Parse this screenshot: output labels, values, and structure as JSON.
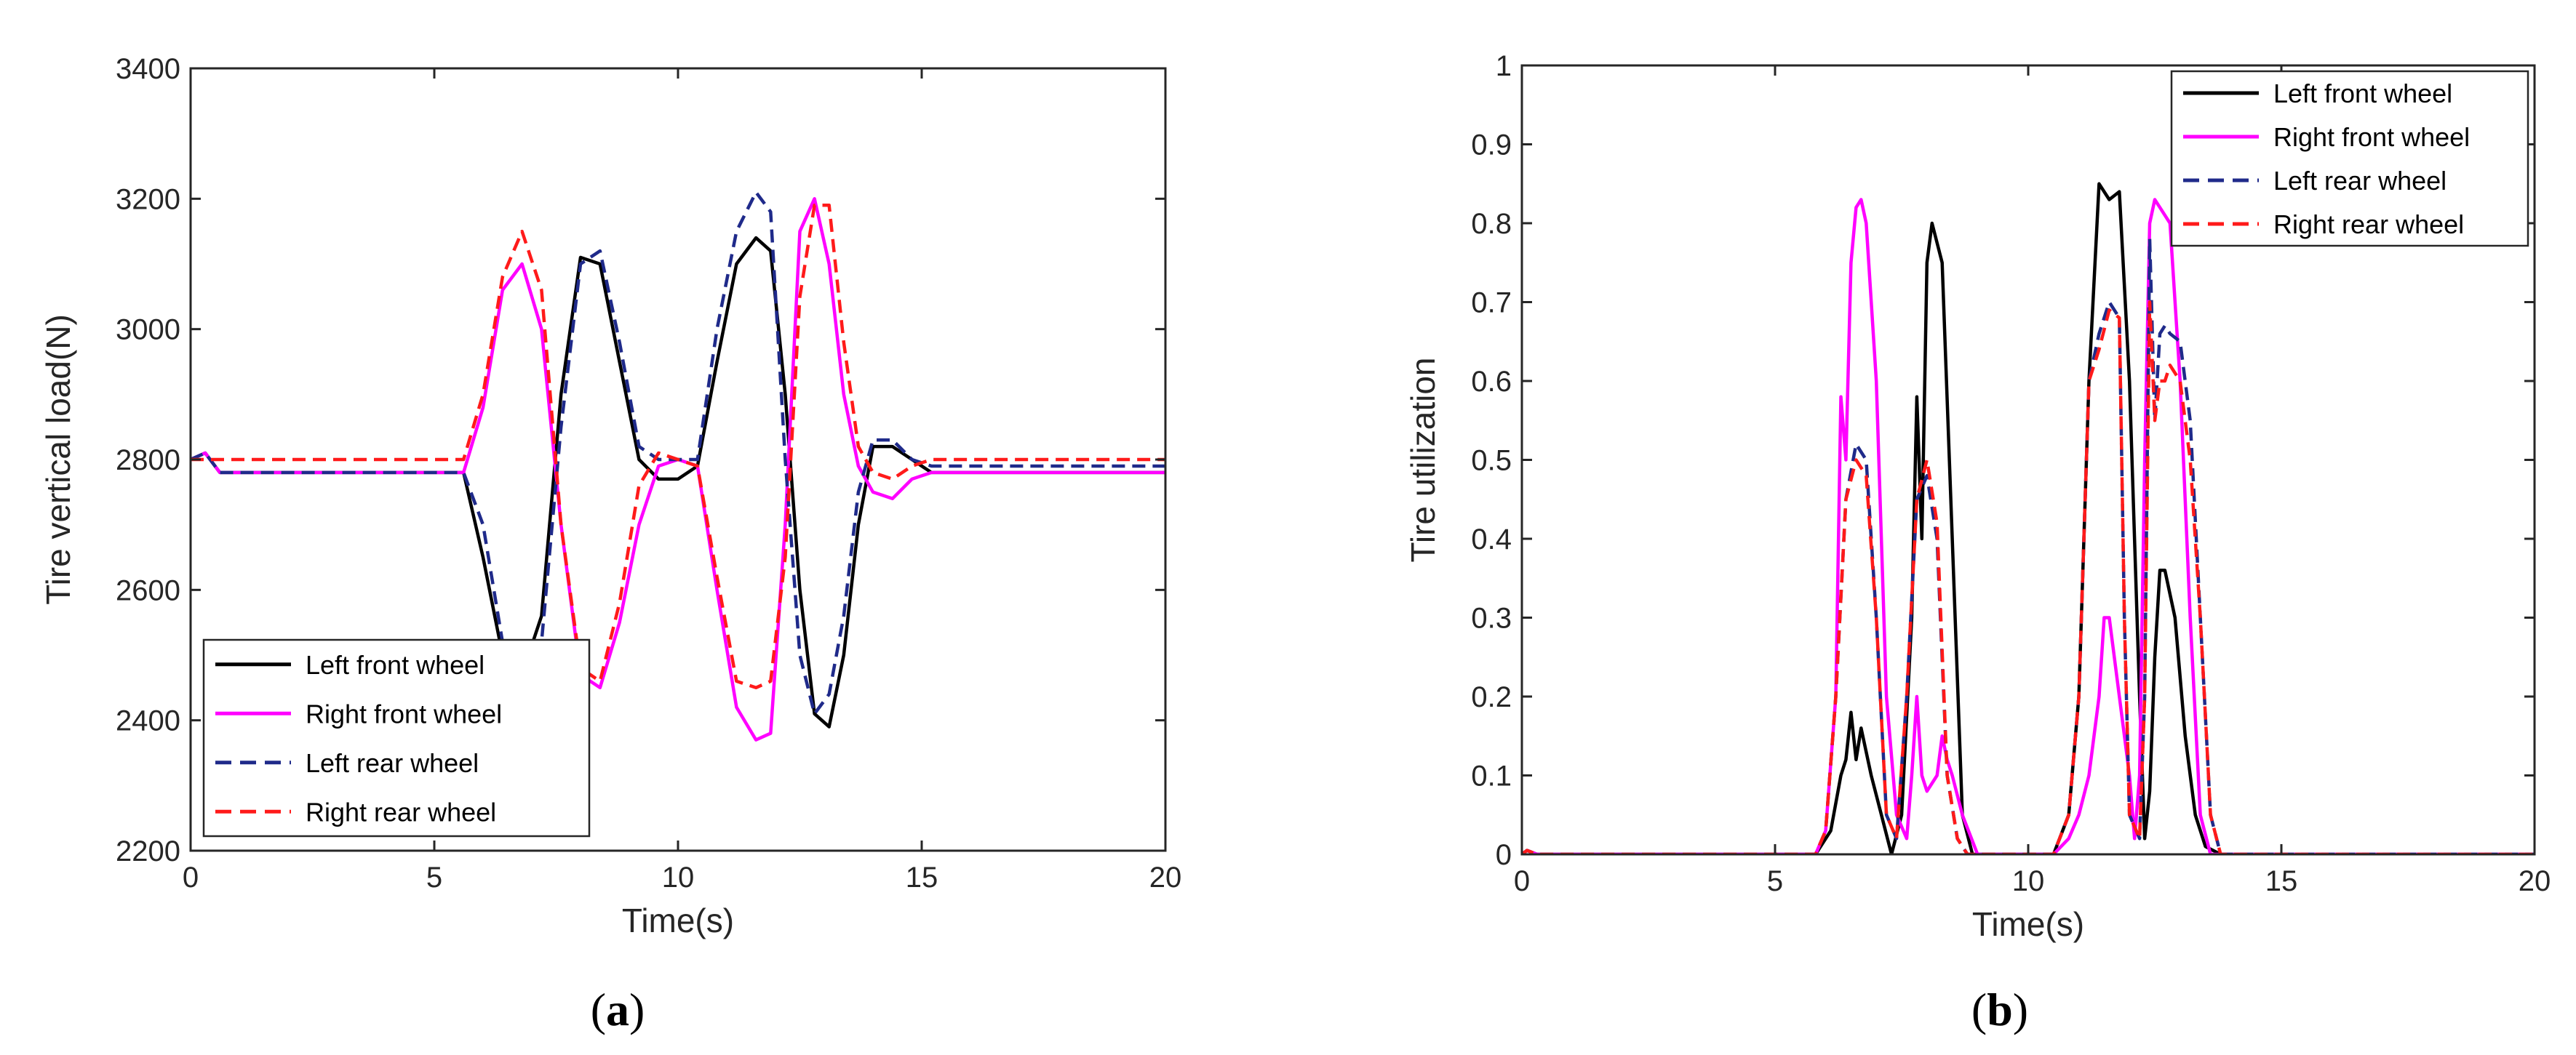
{
  "panels": [
    {
      "label_open": "(",
      "label_letter": "a",
      "label_close": ")"
    },
    {
      "label_open": "(",
      "label_letter": "b",
      "label_close": ")"
    }
  ],
  "series_style": [
    {
      "color": "#000000",
      "dash": false
    },
    {
      "color": "#ff00ff",
      "dash": false
    },
    {
      "color": "#1f2a8a",
      "dash": true
    },
    {
      "color": "#ff1a1a",
      "dash": true
    }
  ],
  "chart_data": [
    {
      "type": "line",
      "xlabel": "Time(s)",
      "ylabel": "Tire vertical load(N)",
      "xlim": [
        0,
        20
      ],
      "ylim": [
        2200,
        3400
      ],
      "xticks": [
        0,
        5,
        10,
        15,
        20
      ],
      "yticks": [
        2200,
        2400,
        2600,
        2800,
        3000,
        3200,
        3400
      ],
      "legend_position": "bottom-left",
      "series": [
        {
          "name": "Left front wheel",
          "x": [
            0,
            0.3,
            0.6,
            5.6,
            6.0,
            6.4,
            6.8,
            7.2,
            7.6,
            8.0,
            8.4,
            8.8,
            9.2,
            9.6,
            10.0,
            10.4,
            10.8,
            11.2,
            11.6,
            11.9,
            12.2,
            12.5,
            12.8,
            13.1,
            13.4,
            13.7,
            14.0,
            14.4,
            14.8,
            15.2,
            20
          ],
          "y": [
            2800,
            2810,
            2780,
            2780,
            2650,
            2500,
            2470,
            2560,
            2900,
            3110,
            3100,
            2950,
            2800,
            2770,
            2770,
            2790,
            2950,
            3100,
            3140,
            3120,
            2900,
            2600,
            2410,
            2390,
            2500,
            2700,
            2820,
            2820,
            2800,
            2780,
            2780
          ]
        },
        {
          "name": "Right front wheel",
          "x": [
            0,
            0.3,
            0.6,
            5.6,
            6.0,
            6.4,
            6.8,
            7.2,
            7.6,
            8.0,
            8.4,
            8.8,
            9.2,
            9.6,
            10.0,
            10.4,
            10.8,
            11.2,
            11.6,
            11.9,
            12.2,
            12.5,
            12.8,
            13.1,
            13.4,
            13.7,
            14.0,
            14.4,
            14.8,
            15.2,
            20
          ],
          "y": [
            2800,
            2810,
            2780,
            2780,
            2880,
            3060,
            3100,
            3000,
            2700,
            2470,
            2450,
            2550,
            2700,
            2790,
            2800,
            2790,
            2600,
            2420,
            2370,
            2380,
            2700,
            3150,
            3200,
            3100,
            2900,
            2790,
            2750,
            2740,
            2770,
            2780,
            2780
          ]
        },
        {
          "name": "Left rear wheel",
          "x": [
            0,
            0.3,
            0.6,
            5.6,
            6.0,
            6.4,
            6.8,
            7.2,
            7.6,
            8.0,
            8.4,
            8.8,
            9.2,
            9.6,
            10.0,
            10.4,
            10.8,
            11.2,
            11.6,
            11.9,
            12.2,
            12.5,
            12.8,
            13.1,
            13.4,
            13.7,
            14.0,
            14.4,
            14.8,
            15.2,
            20
          ],
          "y": [
            2800,
            2810,
            2780,
            2780,
            2700,
            2520,
            2480,
            2520,
            2850,
            3100,
            3120,
            2980,
            2820,
            2800,
            2800,
            2800,
            3000,
            3150,
            3210,
            3180,
            2800,
            2500,
            2410,
            2440,
            2560,
            2750,
            2830,
            2830,
            2800,
            2790,
            2790
          ]
        },
        {
          "name": "Right rear wheel",
          "x": [
            0,
            0.3,
            0.6,
            5.6,
            6.0,
            6.4,
            6.8,
            7.2,
            7.6,
            8.0,
            8.4,
            8.8,
            9.2,
            9.6,
            10.0,
            10.4,
            10.8,
            11.2,
            11.6,
            11.9,
            12.2,
            12.5,
            12.8,
            13.1,
            13.4,
            13.7,
            14.0,
            14.4,
            14.8,
            15.2,
            20
          ],
          "y": [
            2800,
            2800,
            2800,
            2800,
            2900,
            3080,
            3150,
            3060,
            2700,
            2480,
            2460,
            2580,
            2760,
            2810,
            2800,
            2790,
            2620,
            2460,
            2450,
            2460,
            2650,
            3050,
            3190,
            3190,
            2980,
            2820,
            2780,
            2770,
            2790,
            2800,
            2800
          ]
        }
      ]
    },
    {
      "type": "line",
      "xlabel": "Time(s)",
      "ylabel": "Tire utilization",
      "xlim": [
        0,
        20
      ],
      "ylim": [
        0,
        1
      ],
      "xticks": [
        0,
        5,
        10,
        15,
        20
      ],
      "yticks": [
        0,
        0.1,
        0.2,
        0.3,
        0.4,
        0.5,
        0.6,
        0.7,
        0.8,
        0.9,
        1
      ],
      "legend_position": "top-right",
      "series": [
        {
          "name": "Left front wheel",
          "x": [
            0,
            0.1,
            0.3,
            5.8,
            6.1,
            6.3,
            6.4,
            6.5,
            6.6,
            6.7,
            6.9,
            7.1,
            7.3,
            7.5,
            7.7,
            7.8,
            7.9,
            8.0,
            8.1,
            8.3,
            8.5,
            8.7,
            8.9,
            10.5,
            10.8,
            11.0,
            11.2,
            11.4,
            11.6,
            11.8,
            12.0,
            12.2,
            12.3,
            12.4,
            12.5,
            12.6,
            12.7,
            12.9,
            13.1,
            13.3,
            13.5,
            13.8,
            20
          ],
          "y": [
            0,
            0.005,
            0,
            0,
            0.03,
            0.1,
            0.12,
            0.18,
            0.12,
            0.16,
            0.1,
            0.05,
            0,
            0.05,
            0.3,
            0.58,
            0.4,
            0.75,
            0.8,
            0.75,
            0.4,
            0.05,
            0,
            0,
            0.05,
            0.2,
            0.6,
            0.85,
            0.83,
            0.84,
            0.6,
            0.2,
            0.02,
            0.08,
            0.25,
            0.36,
            0.36,
            0.3,
            0.15,
            0.05,
            0.01,
            0,
            0
          ]
        },
        {
          "name": "Right front wheel",
          "x": [
            0,
            0.1,
            0.3,
            5.8,
            6.0,
            6.2,
            6.3,
            6.4,
            6.5,
            6.6,
            6.7,
            6.8,
            7.0,
            7.2,
            7.4,
            7.6,
            7.7,
            7.8,
            7.9,
            8.0,
            8.2,
            8.3,
            8.4,
            8.5,
            8.7,
            9.0,
            10.5,
            10.8,
            11.0,
            11.2,
            11.4,
            11.5,
            11.6,
            11.8,
            12.0,
            12.1,
            12.2,
            12.3,
            12.4,
            12.5,
            12.6,
            12.8,
            13.0,
            13.2,
            13.4,
            13.6,
            20
          ],
          "y": [
            0,
            0.005,
            0,
            0,
            0.03,
            0.2,
            0.58,
            0.5,
            0.75,
            0.82,
            0.83,
            0.8,
            0.6,
            0.2,
            0.05,
            0.02,
            0.1,
            0.2,
            0.1,
            0.08,
            0.1,
            0.15,
            0.12,
            0.1,
            0.05,
            0,
            0,
            0.02,
            0.05,
            0.1,
            0.2,
            0.3,
            0.3,
            0.2,
            0.1,
            0.02,
            0.1,
            0.5,
            0.8,
            0.83,
            0.82,
            0.8,
            0.6,
            0.3,
            0.05,
            0,
            0
          ]
        },
        {
          "name": "Left rear wheel",
          "x": [
            0,
            0.1,
            0.3,
            5.8,
            6.0,
            6.2,
            6.4,
            6.6,
            6.8,
            7.0,
            7.2,
            7.4,
            7.6,
            7.8,
            8.0,
            8.2,
            8.4,
            8.6,
            8.8,
            10.5,
            10.8,
            11.0,
            11.2,
            11.4,
            11.6,
            11.8,
            11.9,
            12.0,
            12.2,
            12.3,
            12.4,
            12.5,
            12.6,
            12.7,
            12.8,
            13.0,
            13.2,
            13.4,
            13.6,
            13.8,
            20
          ],
          "y": [
            0,
            0.005,
            0,
            0,
            0.03,
            0.2,
            0.45,
            0.52,
            0.5,
            0.3,
            0.05,
            0.02,
            0.2,
            0.45,
            0.48,
            0.4,
            0.1,
            0.02,
            0,
            0,
            0.05,
            0.2,
            0.6,
            0.66,
            0.7,
            0.68,
            0.3,
            0.05,
            0.02,
            0.2,
            0.78,
            0.55,
            0.66,
            0.67,
            0.66,
            0.65,
            0.55,
            0.3,
            0.05,
            0,
            0
          ]
        },
        {
          "name": "Right rear wheel",
          "x": [
            0,
            0.1,
            0.3,
            5.8,
            6.0,
            6.2,
            6.4,
            6.6,
            6.8,
            7.0,
            7.2,
            7.4,
            7.6,
            7.8,
            8.0,
            8.2,
            8.4,
            8.6,
            8.8,
            10.5,
            10.8,
            11.0,
            11.2,
            11.4,
            11.6,
            11.8,
            11.9,
            12.0,
            12.2,
            12.3,
            12.4,
            12.5,
            12.6,
            12.7,
            12.8,
            13.0,
            13.2,
            13.4,
            13.6,
            13.8,
            20
          ],
          "y": [
            0,
            0.005,
            0,
            0,
            0.03,
            0.2,
            0.45,
            0.5,
            0.48,
            0.3,
            0.05,
            0.02,
            0.2,
            0.45,
            0.5,
            0.42,
            0.1,
            0.02,
            0,
            0,
            0.05,
            0.2,
            0.6,
            0.64,
            0.69,
            0.68,
            0.3,
            0.05,
            0.02,
            0.2,
            0.7,
            0.55,
            0.6,
            0.6,
            0.62,
            0.6,
            0.5,
            0.3,
            0.05,
            0,
            0
          ]
        }
      ]
    }
  ]
}
